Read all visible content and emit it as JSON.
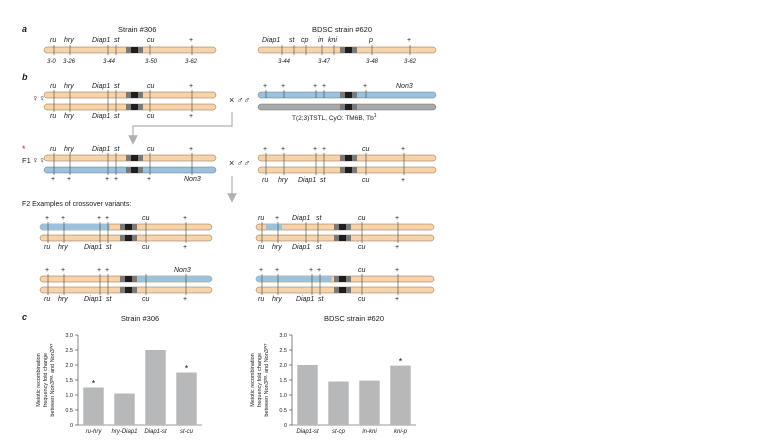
{
  "panels": {
    "a": "a",
    "b": "b",
    "c": "c"
  },
  "panel_a": {
    "left_title": "Strain #306",
    "right_title": "BDSC strain #620",
    "left_labels": [
      "ru",
      "hry",
      "Diap1",
      "st",
      "cu",
      "+"
    ],
    "left_positions": [
      "3-0",
      "3-26",
      "3-44",
      "3-50",
      "3-62"
    ],
    "right_labels": [
      "Diap1",
      "st",
      "cp",
      "in",
      "kni",
      "p",
      "+"
    ],
    "right_positions": [
      "3-44",
      "3-47",
      "3-48",
      "3-62"
    ]
  },
  "panel_b": {
    "female_symbol": "♀♀",
    "male_symbol": "× ♂♂",
    "chrom_labels_top": [
      "ru",
      "hry",
      "Diap1",
      "st",
      "cu",
      "+"
    ],
    "plus": "+",
    "non3": "Non3",
    "balancer_caption": "T(2;3)TSTL, CyO: TM6B, Tb",
    "balancer_sup": "1",
    "f1_star": "*",
    "f1_label": "F1",
    "f1_right_labels": [
      "ru",
      "hry",
      "Diap1",
      "st",
      "cu",
      "+"
    ],
    "f2_title": "F2  Examples of crossover variants:"
  },
  "chart_data": [
    {
      "type": "bar",
      "title": "Strain #306",
      "categories": [
        "ru-hry",
        "hry-Diap1",
        "Diap1-st",
        "st-cu"
      ],
      "values": [
        1.25,
        1.05,
        2.5,
        1.75
      ],
      "significant": [
        true,
        false,
        false,
        true
      ],
      "ylabel_lines": [
        "Meiotic recombination",
        "frequency fold change",
        "between Non3ᴰᴱᴸ and Non3ᵂᵀ"
      ],
      "ylim": [
        0,
        3
      ],
      "yticks": [
        "0",
        "0.5",
        "1.0",
        "1.5",
        "2.0",
        "2.5",
        "3.0"
      ],
      "star": "*"
    },
    {
      "type": "bar",
      "title": "BDSC strain #620",
      "categories": [
        "Diap1-st",
        "st-cp",
        "in-kni",
        "kni-p"
      ],
      "values": [
        2.0,
        1.45,
        1.48,
        1.98
      ],
      "significant": [
        false,
        false,
        false,
        true
      ],
      "ylabel_lines": [
        "Meiotic recombination",
        "frequency fold change",
        "between Non3ᴰᴱᴸ and Non3ᵂᵀ"
      ],
      "ylim": [
        0,
        3
      ],
      "yticks": [
        "0",
        "0.5",
        "1.0",
        "1.5",
        "2.0",
        "2.5",
        "3.0"
      ],
      "star": "*"
    }
  ],
  "colors": {
    "chrom": "#f7d3aa",
    "chrom_stroke": "#8a6a4a",
    "blue": "#9cc1da",
    "grey": "#a7a9ab",
    "bar": "#b7b8ba",
    "centromere": "#1e1e1e",
    "cgrey": "#7a7a7a",
    "arrow": "#b0b0b0",
    "star": "#d12020"
  }
}
